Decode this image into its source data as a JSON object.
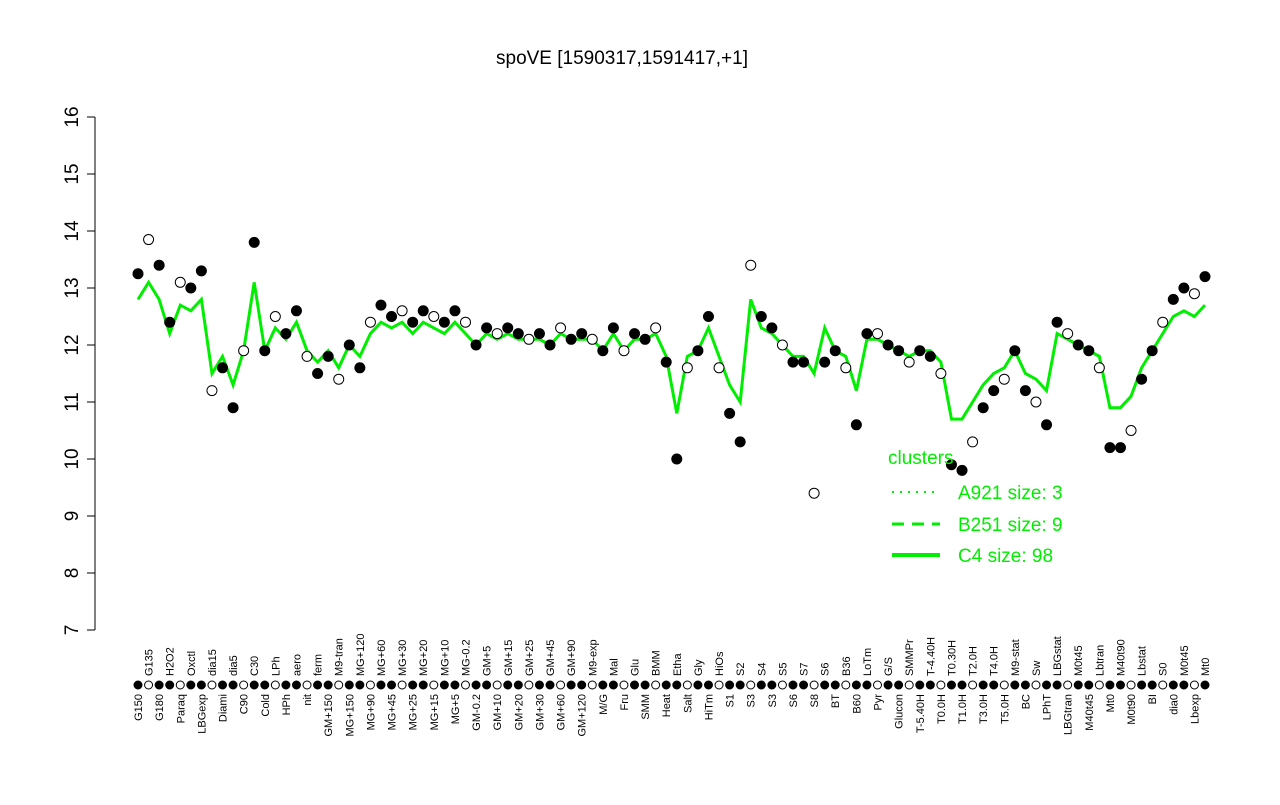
{
  "chart_data": {
    "type": "line",
    "title": "spoVE [1590317,1591417,+1]",
    "xlabel": "",
    "ylabel": "",
    "ylim": [
      7,
      16
    ],
    "yticks": [
      7,
      8,
      9,
      10,
      11,
      12,
      13,
      14,
      15,
      16
    ],
    "grid": false,
    "legend_position": "bottom-right",
    "categories": [
      "G150",
      "G135",
      "G180",
      "H2O2",
      "Paraq",
      "Oxctl",
      "LBGexp",
      "dia15",
      "Diami",
      "dia5",
      "C90",
      "C30",
      "Cold",
      "LPh",
      "HPh",
      "aero",
      "nit",
      "ferm",
      "GM+150",
      "M9-tran",
      "MG+150",
      "MG+120",
      "MG+90",
      "MG+60",
      "MG+45",
      "MG+30",
      "MG+25",
      "MG+20",
      "MG+15",
      "MG+10",
      "MG+5",
      "MG-0.2",
      "GM-0.2",
      "GM+5",
      "GM+10",
      "GM+15",
      "GM+20",
      "GM+25",
      "GM+30",
      "GM+45",
      "GM+60",
      "GM+90",
      "GM+120",
      "M9-exp",
      "M/G",
      "Mal",
      "Fru",
      "Glu",
      "SMM",
      "BMM",
      "Heat",
      "Etha",
      "Salt",
      "Gly",
      "HiTm",
      "HiOs",
      "S1",
      "S2",
      "S3",
      "S4",
      "S3",
      "S5",
      "S6",
      "S7",
      "S8",
      "S6",
      "BT",
      "B36",
      "B60",
      "LoTm",
      "Pyr",
      "G/S",
      "Glucon",
      "SMMPr",
      "T-5.40H",
      "T-4.40H",
      "T0.0H",
      "T0.30H",
      "T1.0H",
      "T2.0H",
      "T3.0H",
      "T4.0H",
      "T5.0H",
      "M9-stat",
      "BC",
      "Sw",
      "LPhT",
      "LBGstat",
      "LBGtran",
      "M0t45",
      "M40t45",
      "Lbtran",
      "Mt0",
      "M40t90",
      "M0t90",
      "Lbstat",
      "BI",
      "S0",
      "dia0",
      "M0t45",
      "Lbexp",
      "Mt0"
    ],
    "values": [
      13.25,
      13.85,
      13.4,
      12.4,
      13.1,
      13.0,
      13.3,
      11.2,
      11.6,
      10.9,
      11.9,
      13.8,
      11.9,
      12.5,
      12.2,
      12.6,
      11.8,
      11.5,
      11.8,
      11.4,
      12.0,
      11.6,
      12.4,
      12.7,
      12.5,
      12.6,
      12.4,
      12.6,
      12.5,
      12.4,
      12.6,
      12.4,
      12.0,
      12.3,
      12.2,
      12.3,
      12.2,
      12.1,
      12.2,
      12.0,
      12.3,
      12.1,
      12.2,
      12.1,
      11.9,
      12.3,
      11.9,
      12.2,
      12.1,
      12.3,
      11.7,
      10.0,
      11.6,
      11.9,
      12.5,
      11.6,
      10.8,
      10.3,
      13.4,
      12.5,
      12.3,
      12.0,
      11.7,
      11.7,
      9.4,
      11.7,
      11.9,
      11.6,
      10.6,
      12.2,
      12.2,
      12.0,
      11.9,
      11.7,
      11.9,
      11.8,
      11.5,
      9.9,
      9.8,
      10.3,
      10.9,
      11.2,
      11.4,
      11.9,
      11.2,
      11.0,
      10.6,
      12.4,
      12.2,
      12.0,
      11.9,
      11.6,
      10.2,
      10.2,
      10.5,
      11.4,
      11.9,
      12.4,
      12.8,
      13.0,
      12.9,
      13.2
    ],
    "series": [
      {
        "name": "C4 size: 98",
        "style": "solid",
        "values": [
          12.8,
          13.1,
          12.8,
          12.2,
          12.7,
          12.6,
          12.8,
          11.5,
          11.8,
          11.3,
          11.9,
          13.1,
          11.9,
          12.3,
          12.1,
          12.4,
          11.9,
          11.7,
          11.9,
          11.6,
          12.0,
          11.8,
          12.2,
          12.4,
          12.3,
          12.4,
          12.2,
          12.4,
          12.3,
          12.2,
          12.4,
          12.2,
          12.0,
          12.2,
          12.1,
          12.2,
          12.1,
          12.1,
          12.1,
          12.0,
          12.2,
          12.1,
          12.1,
          12.1,
          11.9,
          12.2,
          11.9,
          12.1,
          12.1,
          12.2,
          11.8,
          10.8,
          11.8,
          11.9,
          12.3,
          11.8,
          11.3,
          11.0,
          12.8,
          12.3,
          12.2,
          12.0,
          11.8,
          11.8,
          11.5,
          12.3,
          11.9,
          11.8,
          11.2,
          12.1,
          12.1,
          12.0,
          11.9,
          11.8,
          11.9,
          11.9,
          11.7,
          10.7,
          10.7,
          11.0,
          11.3,
          11.5,
          11.6,
          11.9,
          11.5,
          11.4,
          11.2,
          12.2,
          12.1,
          12.0,
          11.9,
          11.8,
          10.9,
          10.9,
          11.1,
          11.6,
          11.9,
          12.2,
          12.5,
          12.6,
          12.5,
          12.7
        ]
      }
    ],
    "legend": {
      "title": "clusters",
      "entries": [
        {
          "label": "A921 size: 3",
          "style": "dotted"
        },
        {
          "label": "B251 size: 9",
          "style": "dashed"
        },
        {
          "label": "C4 size: 98",
          "style": "solid"
        }
      ]
    },
    "colors": {
      "cluster_line": "#00ee00",
      "points": "#000000"
    }
  }
}
